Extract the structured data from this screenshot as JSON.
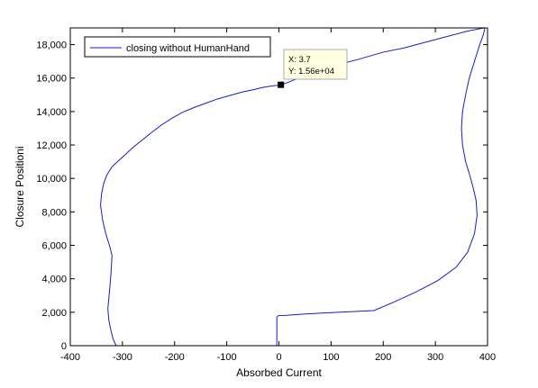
{
  "chart_data": {
    "type": "line",
    "title": "",
    "xlabel": "Absorbed Current",
    "ylabel": "Closure Positioni",
    "xlim": [
      -400,
      400
    ],
    "ylim": [
      0,
      19000
    ],
    "x_ticks": [
      -400,
      -300,
      -200,
      -100,
      0,
      100,
      200,
      300,
      400
    ],
    "y_ticks": [
      0,
      2000,
      4000,
      6000,
      8000,
      10000,
      12000,
      14000,
      16000,
      18000
    ],
    "x_tick_labels": [
      "-400",
      "-300",
      "-200",
      "-100",
      "0",
      "100",
      "200",
      "300",
      "400"
    ],
    "y_tick_labels": [
      "0",
      "2,000",
      "4,000",
      "6,000",
      "8,000",
      "10,000",
      "12,000",
      "14,000",
      "16,000",
      "18,000"
    ],
    "grid": false,
    "legend_position": "top-left",
    "colors": {
      "line": "#1a1acc",
      "axes": "#000000",
      "tooltip_bg": "#ffffe1",
      "marker": "#000000"
    },
    "series": [
      {
        "name": "closing without HumanHand",
        "x": [
          -312,
          -318,
          -322,
          -326,
          -328,
          -325,
          -322,
          -320,
          -325,
          -332,
          -338,
          -342,
          -340,
          -336,
          -330,
          -320,
          -306,
          -292,
          -278,
          -262,
          -244,
          -225,
          -205,
          -185,
          -162,
          -140,
          -118,
          -95,
          -72,
          -50,
          -30,
          -15,
          -5,
          0,
          3.7,
          12,
          30,
          60,
          100,
          150,
          200,
          240,
          270,
          300,
          330,
          360,
          385,
          395,
          392,
          385,
          375,
          365,
          358,
          352,
          350,
          352,
          358,
          365,
          372,
          378,
          380,
          375,
          362,
          340,
          305,
          262,
          220,
          182,
          150,
          100,
          50,
          15,
          0,
          -2,
          -4,
          -4
        ],
        "y": [
          0,
          400,
          900,
          1500,
          2200,
          3200,
          4300,
          5400,
          6000,
          6700,
          7500,
          8400,
          9100,
          9700,
          10200,
          10700,
          11100,
          11500,
          11900,
          12300,
          12750,
          13200,
          13600,
          13950,
          14250,
          14500,
          14750,
          14950,
          15150,
          15300,
          15450,
          15520,
          15560,
          15590,
          15600,
          15680,
          15900,
          16250,
          16700,
          17100,
          17550,
          17800,
          18050,
          18300,
          18550,
          18800,
          18950,
          19000,
          18600,
          18000,
          17000,
          16000,
          15000,
          14000,
          13000,
          12000,
          11000,
          10300,
          9500,
          8700,
          7800,
          6700,
          5600,
          4700,
          3900,
          3200,
          2600,
          2100,
          2050,
          1980,
          1900,
          1820,
          1800,
          1780,
          1700,
          0
        ]
      }
    ],
    "datatip": {
      "x_text": "X: 3.7",
      "y_text": "Y: 1.56e+04",
      "x": 3.7,
      "y": 15600
    }
  }
}
